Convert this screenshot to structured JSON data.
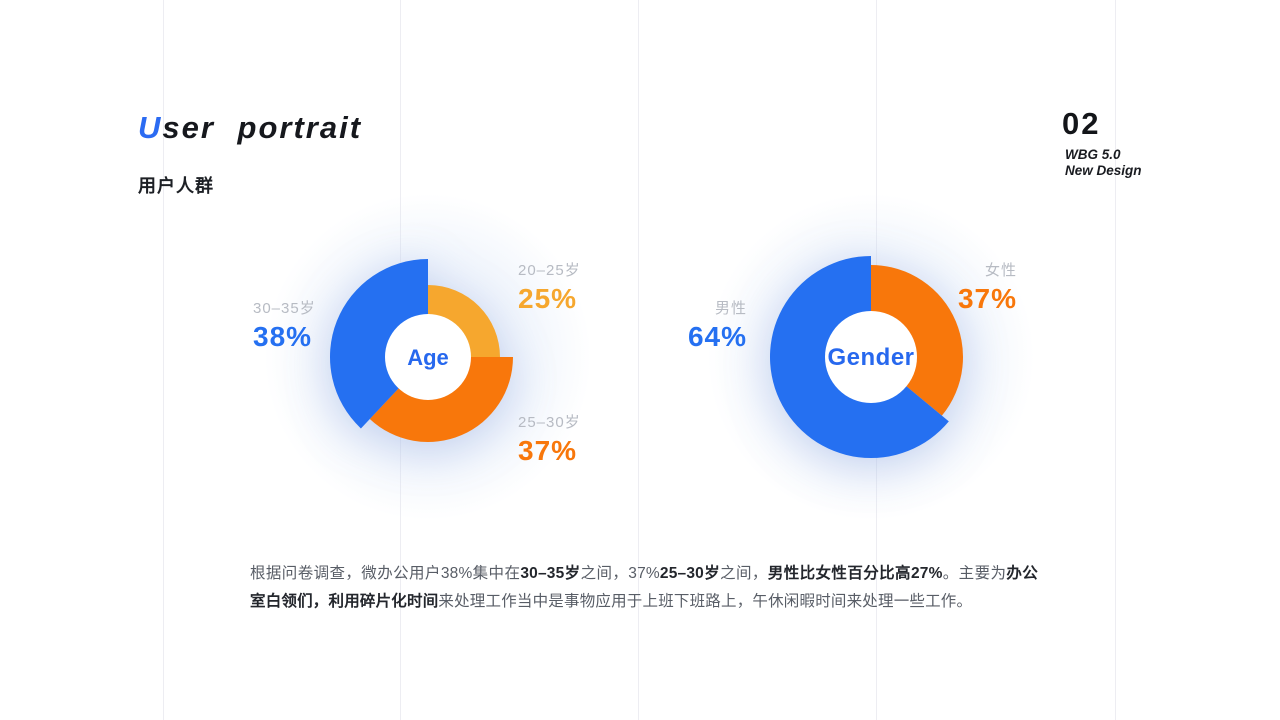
{
  "header": {
    "title_first_letter": "U",
    "title_rest": "ser portrait",
    "subtitle": "用户人群"
  },
  "page_marker": {
    "number": "02",
    "line1": "WBG 5.0",
    "line2": "New Design"
  },
  "colors": {
    "accent_blue": "#2570f1",
    "accent_orange": "#f8770b",
    "accent_yellow": "#f6a72e",
    "label_gray": "#b7bbc3",
    "center_text_blue": "#2768ee"
  },
  "chart_data": [
    {
      "type": "donut",
      "center_label": "Age",
      "inner_radius": 43,
      "segments": [
        {
          "label": "20–25岁",
          "value": 25,
          "value_label": "25%",
          "color": "#f6a72e",
          "outer_radius": 72
        },
        {
          "label": "25–30岁",
          "value": 37,
          "value_label": "37%",
          "color": "#f8770b",
          "outer_radius": 85
        },
        {
          "label": "30–35岁",
          "value": 38,
          "value_label": "38%",
          "color": "#2570f1",
          "outer_radius": 98
        }
      ]
    },
    {
      "type": "donut",
      "center_label": "Gender",
      "inner_radius": 46,
      "segments": [
        {
          "label": "女性",
          "value": 37,
          "value_label": "37%",
          "color": "#f8770b",
          "outer_radius": 92
        },
        {
          "label": "男性",
          "value": 64,
          "value_label": "64%",
          "color": "#2570f1",
          "outer_radius": 101
        }
      ]
    }
  ],
  "description": {
    "segments": [
      {
        "text": "根据问卷调查，微办公用户38%集中在",
        "bold": false
      },
      {
        "text": "30–35岁",
        "bold": true
      },
      {
        "text": "之间，37%",
        "bold": false
      },
      {
        "text": "25–30岁",
        "bold": true
      },
      {
        "text": "之间，",
        "bold": false
      },
      {
        "text": "男性比女性百分比高27%",
        "bold": true
      },
      {
        "text": "。主要为",
        "bold": false
      },
      {
        "text": "办公室白领们，利用碎片化时间",
        "bold": true
      },
      {
        "text": "来处理工作当中是事物应用于上班下班路上，午休闲暇时间来处理一些工作。",
        "bold": false
      }
    ]
  }
}
